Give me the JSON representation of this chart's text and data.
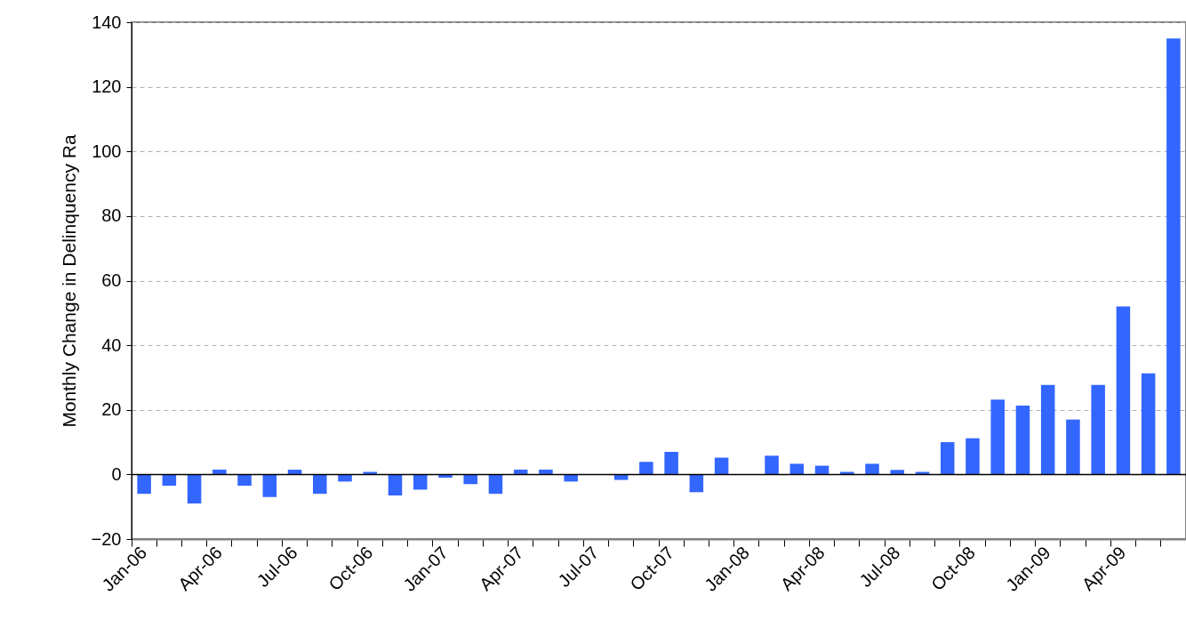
{
  "chart_data": {
    "type": "bar",
    "ylabel": "Monthly Change in Delinquency Ra",
    "categories": [
      "Jan-06",
      null,
      null,
      "Apr-06",
      null,
      null,
      "Jul-06",
      null,
      null,
      "Oct-06",
      null,
      null,
      "Jan-07",
      null,
      null,
      "Apr-07",
      null,
      null,
      "Jul-07",
      null,
      null,
      "Oct-07",
      null,
      null,
      "Jan-08",
      null,
      null,
      "Apr-08",
      null,
      null,
      "Jul-08",
      null,
      null,
      "Oct-08",
      null,
      null,
      "Jan-09",
      null,
      null,
      "Apr-09",
      null,
      null
    ],
    "values": [
      -6,
      -3.5,
      -9,
      1.5,
      -3.5,
      -7,
      1.5,
      -6,
      -2.2,
      0.8,
      -6.5,
      -4.7,
      -1,
      -3,
      -6,
      1.5,
      1.5,
      -2.2,
      null,
      -1.7,
      3.9,
      7,
      -5.5,
      5.2,
      null,
      5.8,
      3.3,
      2.7,
      0.8,
      3.3,
      1.4,
      0.8,
      10,
      11.2,
      23.2,
      21.3,
      27.7,
      17,
      27.7,
      52,
      31.3,
      135
    ],
    "color": "#3366ff",
    "ylim": [
      -20,
      140
    ],
    "yticks": [
      -20,
      0,
      20,
      40,
      60,
      80,
      100,
      120,
      140
    ],
    "grid": "y",
    "ref_lines": [
      {
        "axis": "y",
        "value": 0,
        "color": "#000000"
      }
    ]
  }
}
